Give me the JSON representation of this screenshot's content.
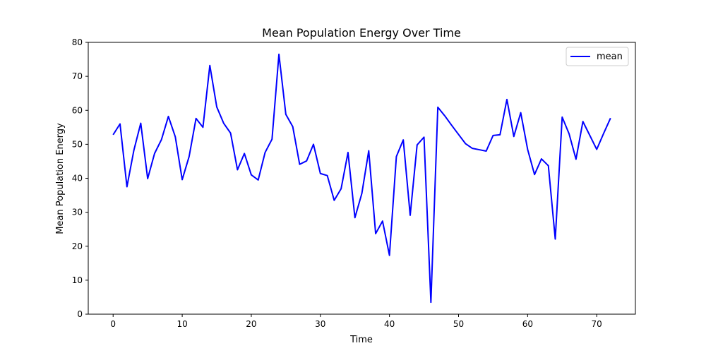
{
  "chart_data": {
    "type": "line",
    "title": "Mean Population Energy Over Time",
    "xlabel": "Time",
    "ylabel": "Mean Population Energy",
    "xlim": [
      -3.6,
      75.6
    ],
    "ylim": [
      0,
      80
    ],
    "xticks": [
      0,
      10,
      20,
      30,
      40,
      50,
      60,
      70
    ],
    "yticks": [
      0,
      10,
      20,
      30,
      40,
      50,
      60,
      70,
      80
    ],
    "grid": false,
    "legend_position": "upper right",
    "series": [
      {
        "name": "mean",
        "color": "#0000ff",
        "x": [
          0,
          1,
          2,
          3,
          4,
          5,
          6,
          7,
          8,
          9,
          10,
          11,
          12,
          13,
          14,
          15,
          16,
          17,
          18,
          19,
          20,
          21,
          22,
          23,
          24,
          25,
          26,
          27,
          28,
          29,
          30,
          31,
          32,
          33,
          34,
          35,
          36,
          37,
          38,
          39,
          40,
          41,
          42,
          43,
          44,
          45,
          46,
          47,
          48,
          49,
          50,
          51,
          52,
          53,
          54,
          55,
          56,
          57,
          58,
          59,
          60,
          61,
          62,
          63,
          64,
          65,
          66,
          67,
          68,
          69,
          70,
          71,
          72
        ],
        "y": [
          52.8,
          56.0,
          37.5,
          48.2,
          56.2,
          39.9,
          47.3,
          51.4,
          58.2,
          52.2,
          39.6,
          46.4,
          57.6,
          55.0,
          73.2,
          61.0,
          56.2,
          53.3,
          42.5,
          47.3,
          41.0,
          39.5,
          47.6,
          51.5,
          76.5,
          58.8,
          55.2,
          44.1,
          45.1,
          50.0,
          41.4,
          40.8,
          33.5,
          36.9,
          47.6,
          28.4,
          35.5,
          48.1,
          23.7,
          27.4,
          17.3,
          46.4,
          51.3,
          29.1,
          49.8,
          52.1,
          3.5,
          60.9,
          58.4,
          55.6,
          52.9,
          50.2,
          48.8,
          48.4,
          48.0,
          52.6,
          52.8,
          63.2,
          52.3,
          59.3,
          48.5,
          41.1,
          45.7,
          43.7,
          22.1,
          58.0,
          53.1,
          45.6,
          56.7,
          52.6,
          48.5,
          53.2,
          57.7
        ]
      }
    ]
  }
}
